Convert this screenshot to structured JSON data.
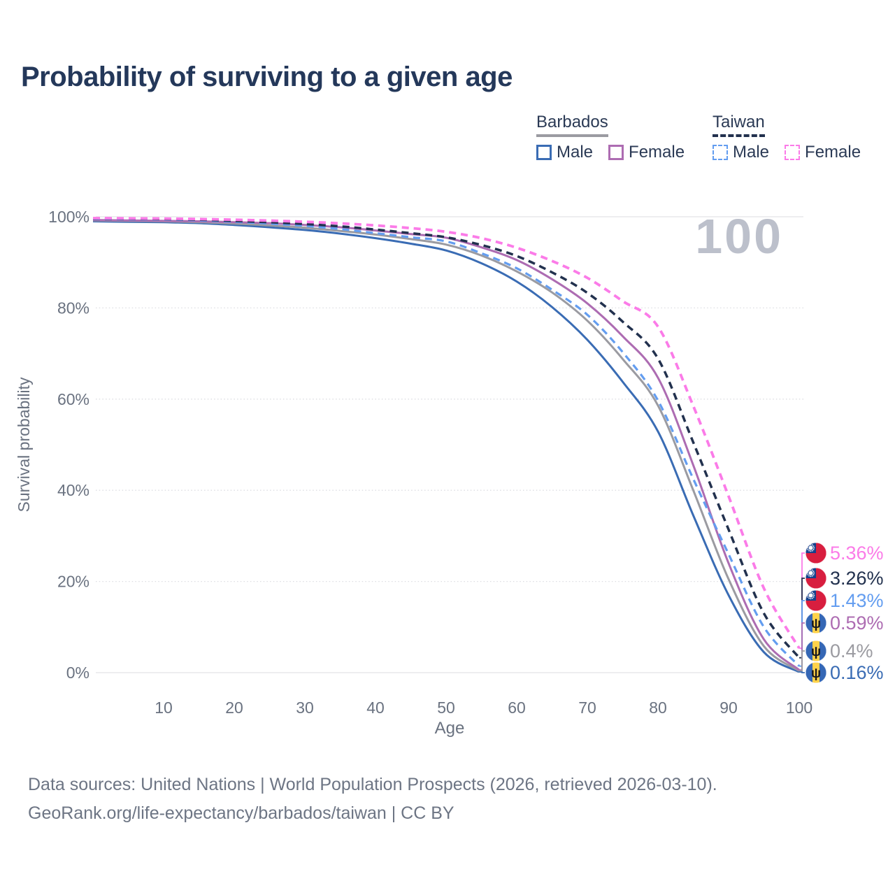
{
  "title": "Probability of surviving to a given age",
  "watermark": "100",
  "legend": {
    "groups": [
      {
        "name": "Barbados",
        "line_style": "solid",
        "line_color": "#9b9ba1",
        "items": [
          {
            "label": "Male",
            "color": "#3a6cb4",
            "dashed": false
          },
          {
            "label": "Female",
            "color": "#ad6cb2",
            "dashed": false
          }
        ]
      },
      {
        "name": "Taiwan",
        "line_style": "dashed",
        "line_color": "#22314e",
        "items": [
          {
            "label": "Male",
            "color": "#639df0",
            "dashed": true
          },
          {
            "label": "Female",
            "color": "#fb7be8",
            "dashed": true
          }
        ]
      }
    ]
  },
  "footer": {
    "line1": "Data sources: United Nations | World Population Prospects (2026, retrieved 2026-03-10).",
    "line2": "GeoRank.org/life-expectancy/barbados/taiwan | CC BY"
  },
  "chart_data": {
    "type": "line",
    "title": "Probability of surviving to a given age",
    "xlabel": "Age",
    "ylabel": "Survival probability",
    "xlim": [
      0,
      100
    ],
    "ylim_percent": [
      0,
      100
    ],
    "x_ticks": [
      10,
      20,
      30,
      40,
      50,
      60,
      70,
      80,
      90,
      100
    ],
    "y_ticks": [
      "100%",
      "80%",
      "60%",
      "40%",
      "20%",
      "0%"
    ],
    "y_tick_values": [
      100,
      80,
      60,
      40,
      20,
      0
    ],
    "grid": true,
    "legend_position": "top-right",
    "x": [
      0,
      5,
      10,
      15,
      20,
      25,
      30,
      35,
      40,
      45,
      50,
      55,
      60,
      65,
      70,
      75,
      80,
      85,
      90,
      95,
      100
    ],
    "series": [
      {
        "name": "Barbados Male",
        "country": "Barbados",
        "sex": "Male",
        "color": "#3a6cb4",
        "dashed": false,
        "width": 3,
        "end_label": "0.16%",
        "flag": "barbados",
        "values": [
          99.0,
          98.9,
          98.8,
          98.6,
          98.2,
          97.7,
          97.1,
          96.3,
          95.3,
          94.1,
          92.6,
          89.8,
          85.8,
          80.2,
          73.0,
          63.8,
          52.9,
          34.5,
          17.0,
          4.5,
          0.16
        ]
      },
      {
        "name": "Barbados Both sexes",
        "country": "Barbados",
        "sex": "Both",
        "color": "#9b9ba1",
        "dashed": false,
        "width": 3,
        "end_label": "0.4%",
        "flag": "barbados",
        "values": [
          99.2,
          99.1,
          99.0,
          98.8,
          98.5,
          98.1,
          97.6,
          96.9,
          96.1,
          95.1,
          93.9,
          91.5,
          88.0,
          83.4,
          77.2,
          68.8,
          58.6,
          40.0,
          20.5,
          5.8,
          0.4
        ]
      },
      {
        "name": "Barbados Female",
        "country": "Barbados",
        "sex": "Female",
        "color": "#ad6cb2",
        "dashed": false,
        "width": 3,
        "end_label": "0.59%",
        "flag": "barbados",
        "values": [
          99.3,
          99.2,
          99.1,
          99.0,
          98.8,
          98.6,
          98.2,
          97.7,
          97.0,
          96.2,
          95.4,
          93.3,
          90.5,
          86.3,
          81.0,
          73.8,
          64.7,
          45.5,
          24.0,
          7.3,
          0.59
        ]
      },
      {
        "name": "Taiwan Male",
        "country": "Taiwan",
        "sex": "Male",
        "color": "#639df0",
        "dashed": true,
        "width": 3.2,
        "end_label": "1.43%",
        "flag": "taiwan",
        "values": [
          99.5,
          99.45,
          99.4,
          99.2,
          98.9,
          98.5,
          98.0,
          97.3,
          96.4,
          95.5,
          94.6,
          92.0,
          88.7,
          84.0,
          78.5,
          70.3,
          59.7,
          42.5,
          26.0,
          10.0,
          1.43
        ]
      },
      {
        "name": "Taiwan Both sexes",
        "country": "Taiwan",
        "sex": "Both",
        "color": "#22314e",
        "dashed": true,
        "width": 3.5,
        "end_label": "3.26%",
        "flag": "taiwan",
        "values": [
          99.6,
          99.55,
          99.5,
          99.35,
          99.1,
          98.8,
          98.4,
          97.9,
          97.2,
          96.4,
          95.5,
          93.8,
          91.4,
          87.8,
          83.3,
          77.0,
          68.9,
          50.5,
          31.4,
          13.0,
          3.26
        ]
      },
      {
        "name": "Taiwan Female",
        "country": "Taiwan",
        "sex": "Female",
        "color": "#fb7be8",
        "dashed": true,
        "width": 3.8,
        "end_label": "5.36%",
        "flag": "taiwan",
        "values": [
          99.7,
          99.65,
          99.6,
          99.5,
          99.35,
          99.15,
          98.9,
          98.55,
          98.1,
          97.5,
          96.7,
          95.3,
          93.2,
          90.3,
          86.6,
          81.5,
          75.9,
          58.5,
          38.7,
          18.5,
          5.36
        ]
      }
    ]
  },
  "colors": {
    "title": "#24385a",
    "axis_text": "#6a7280",
    "grid_solid": "#e8e8eb",
    "grid_dotted": "#dcdde2",
    "watermark": "#b9bdc9",
    "taiwan_flag_red": "#d81e3f",
    "taiwan_flag_blue": "#15418c",
    "barbados_flag_blue": "#3567b5",
    "barbados_flag_yellow": "#ffd24a",
    "trident": "#17171c"
  }
}
